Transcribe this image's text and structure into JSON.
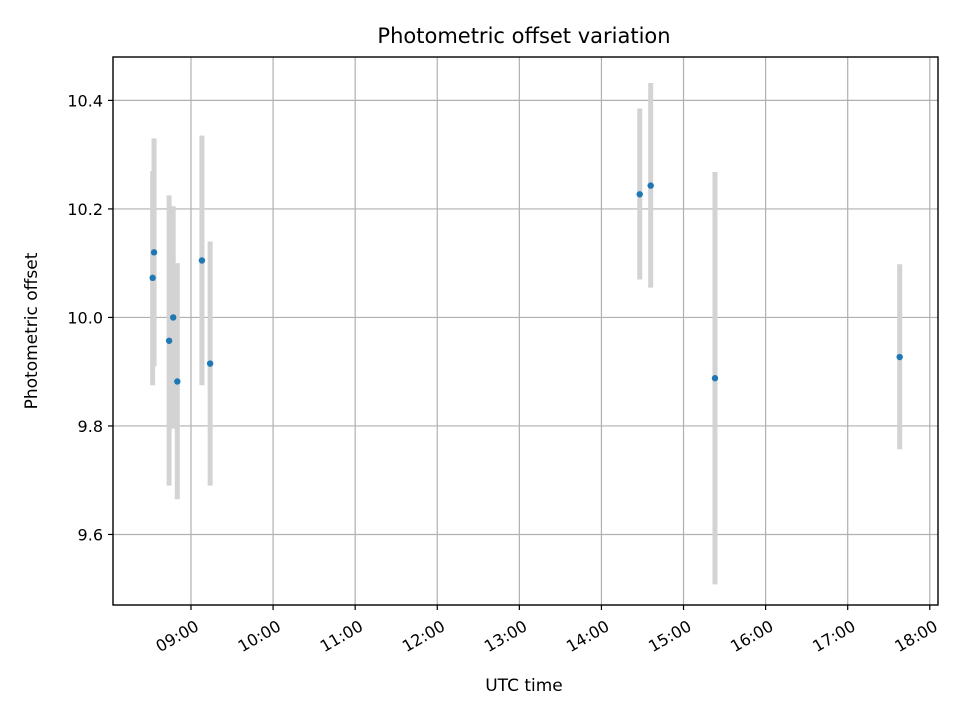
{
  "chart_data": {
    "type": "scatter",
    "title": "Photometric offset variation",
    "xlabel": "UTC time",
    "ylabel": "Photometric offset",
    "x_range_hours": [
      8.05,
      18.1
    ],
    "ylim": [
      9.47,
      10.48
    ],
    "x_ticks": [
      {
        "hour": 9,
        "label": "09:00"
      },
      {
        "hour": 10,
        "label": "10:00"
      },
      {
        "hour": 11,
        "label": "11:00"
      },
      {
        "hour": 12,
        "label": "12:00"
      },
      {
        "hour": 13,
        "label": "13:00"
      },
      {
        "hour": 14,
        "label": "14:00"
      },
      {
        "hour": 15,
        "label": "15:00"
      },
      {
        "hour": 16,
        "label": "16:00"
      },
      {
        "hour": 17,
        "label": "17:00"
      },
      {
        "hour": 18,
        "label": "18:00"
      }
    ],
    "y_ticks": [
      {
        "value": 9.6,
        "label": "9.6"
      },
      {
        "value": 9.8,
        "label": "9.8"
      },
      {
        "value": 10.0,
        "label": "10.0"
      },
      {
        "value": 10.2,
        "label": "10.2"
      },
      {
        "value": 10.4,
        "label": "10.4"
      }
    ],
    "grid": true,
    "marker_color": "#1f77b4",
    "errorbar_color": "#d3d3d3",
    "points": [
      {
        "time": "08:32",
        "y": 10.073,
        "err_low": 9.875,
        "err_high": 10.27
      },
      {
        "time": "08:33",
        "y": 10.12,
        "err_low": 9.91,
        "err_high": 10.33
      },
      {
        "time": "08:44",
        "y": 9.957,
        "err_low": 9.69,
        "err_high": 10.225
      },
      {
        "time": "08:47",
        "y": 10.0,
        "err_low": 9.795,
        "err_high": 10.205
      },
      {
        "time": "08:50",
        "y": 9.882,
        "err_low": 9.665,
        "err_high": 10.1
      },
      {
        "time": "09:08",
        "y": 10.105,
        "err_low": 9.875,
        "err_high": 10.335
      },
      {
        "time": "09:14",
        "y": 9.915,
        "err_low": 9.69,
        "err_high": 10.14
      },
      {
        "time": "14:28",
        "y": 10.227,
        "err_low": 10.07,
        "err_high": 10.385
      },
      {
        "time": "14:36",
        "y": 10.243,
        "err_low": 10.055,
        "err_high": 10.432
      },
      {
        "time": "15:23",
        "y": 9.888,
        "err_low": 9.508,
        "err_high": 10.268
      },
      {
        "time": "17:38",
        "y": 9.927,
        "err_low": 9.757,
        "err_high": 10.098
      }
    ]
  }
}
